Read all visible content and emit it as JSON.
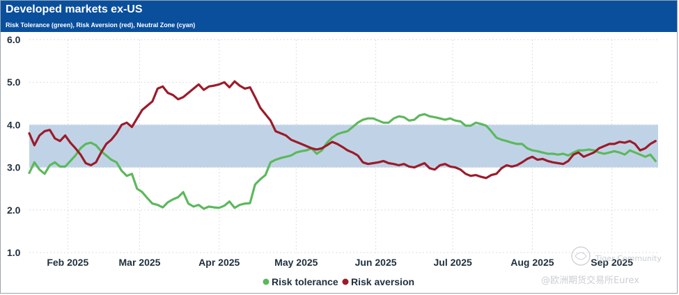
{
  "header": {
    "title": "Developed markets ex-US",
    "subtitle": "Risk Tolerance (green), Risk Aversion (red), Neutral Zone (cyan)"
  },
  "colors": {
    "header_bg": "#0a4f9c",
    "tolerance": "#5cb85c",
    "aversion": "#9b1b2a",
    "neutral": "#c0d3e6",
    "grid": "#d9dde2"
  },
  "watermark": {
    "line1": "Tiger Community",
    "line2": "@欧洲期货交易所Eurex"
  },
  "chart_data": {
    "type": "line",
    "title": "Developed markets ex-US",
    "subtitle": "Risk Tolerance (green), Risk Aversion (red), Neutral Zone (cyan)",
    "xlabel": "",
    "ylabel": "",
    "ylim": [
      1.0,
      6.0
    ],
    "yticks": [
      "6.0",
      "5.0",
      "4.0",
      "3.0",
      "2.0",
      "1.0"
    ],
    "x_range": [
      0,
      245
    ],
    "x_ticks": [
      {
        "label": "Feb 2025",
        "x": 15
      },
      {
        "label": "Mar 2025",
        "x": 43
      },
      {
        "label": "Apr 2025",
        "x": 74
      },
      {
        "label": "May 2025",
        "x": 104
      },
      {
        "label": "Jun 2025",
        "x": 135
      },
      {
        "label": "Jul 2025",
        "x": 165
      },
      {
        "label": "Aug 2025",
        "x": 196
      },
      {
        "label": "Sep 2025",
        "x": 227
      }
    ],
    "neutral_zone": [
      3.0,
      4.0
    ],
    "grid": true,
    "legend_position": "bottom-center",
    "series": [
      {
        "name": "Risk tolerance",
        "color": "#5cb85c",
        "x": [
          0,
          2,
          4,
          6,
          8,
          10,
          12,
          14,
          16,
          18,
          20,
          22,
          24,
          26,
          28,
          30,
          32,
          34,
          36,
          38,
          40,
          42,
          44,
          46,
          48,
          50,
          52,
          54,
          56,
          58,
          60,
          62,
          64,
          66,
          68,
          70,
          72,
          74,
          76,
          78,
          80,
          82,
          84,
          86,
          88,
          90,
          92,
          94,
          96,
          98,
          100,
          102,
          104,
          106,
          108,
          110,
          112,
          114,
          116,
          118,
          120,
          122,
          124,
          126,
          128,
          130,
          132,
          134,
          136,
          138,
          140,
          142,
          144,
          146,
          148,
          150,
          152,
          154,
          156,
          158,
          160,
          162,
          164,
          166,
          168,
          170,
          172,
          174,
          176,
          178,
          180,
          182,
          184,
          186,
          188,
          190,
          192,
          194,
          196,
          198,
          200,
          202,
          204,
          206,
          208,
          210,
          212,
          214,
          216,
          218,
          220,
          222,
          224,
          226,
          228,
          230,
          232,
          234,
          236,
          238,
          240,
          242,
          244
        ],
        "values": [
          2.87,
          3.12,
          2.95,
          2.85,
          3.05,
          3.12,
          3.02,
          3.02,
          3.15,
          3.28,
          3.45,
          3.55,
          3.58,
          3.52,
          3.38,
          3.28,
          3.18,
          3.12,
          2.92,
          2.8,
          2.85,
          2.5,
          2.42,
          2.28,
          2.15,
          2.12,
          2.06,
          2.18,
          2.25,
          2.3,
          2.42,
          2.15,
          2.08,
          2.12,
          2.03,
          2.08,
          2.06,
          2.05,
          2.1,
          2.2,
          2.05,
          2.12,
          2.15,
          2.16,
          2.6,
          2.72,
          2.82,
          3.12,
          3.18,
          3.22,
          3.25,
          3.28,
          3.35,
          3.38,
          3.4,
          3.45,
          3.32,
          3.4,
          3.58,
          3.7,
          3.78,
          3.82,
          3.85,
          3.95,
          4.05,
          4.12,
          4.15,
          4.15,
          4.1,
          4.05,
          4.05,
          4.15,
          4.2,
          4.18,
          4.1,
          4.12,
          4.22,
          4.25,
          4.2,
          4.18,
          4.15,
          4.12,
          4.15,
          4.1,
          4.08,
          3.98,
          3.98,
          4.05,
          4.02,
          3.98,
          3.85,
          3.7,
          3.65,
          3.62,
          3.58,
          3.55,
          3.55,
          3.45,
          3.4,
          3.38,
          3.35,
          3.32,
          3.32,
          3.3,
          3.32,
          3.28,
          3.35,
          3.4,
          3.4,
          3.42,
          3.4,
          3.35,
          3.32,
          3.35,
          3.38,
          3.35,
          3.3,
          3.4,
          3.35,
          3.3,
          3.25,
          3.3,
          3.15
        ]
      },
      {
        "name": "Risk aversion",
        "color": "#9b1b2a",
        "x": [
          0,
          2,
          4,
          6,
          8,
          10,
          12,
          14,
          16,
          18,
          20,
          22,
          24,
          26,
          28,
          30,
          32,
          34,
          36,
          38,
          40,
          42,
          44,
          46,
          48,
          50,
          52,
          54,
          56,
          58,
          60,
          62,
          64,
          66,
          68,
          70,
          72,
          74,
          76,
          78,
          80,
          82,
          84,
          86,
          88,
          90,
          92,
          94,
          96,
          98,
          100,
          102,
          104,
          106,
          108,
          110,
          112,
          114,
          116,
          118,
          120,
          122,
          124,
          126,
          128,
          130,
          132,
          134,
          136,
          138,
          140,
          142,
          144,
          146,
          148,
          150,
          152,
          154,
          156,
          158,
          160,
          162,
          164,
          166,
          168,
          170,
          172,
          174,
          176,
          178,
          180,
          182,
          184,
          186,
          188,
          190,
          192,
          194,
          196,
          198,
          200,
          202,
          204,
          206,
          208,
          210,
          212,
          214,
          216,
          218,
          220,
          222,
          224,
          226,
          228,
          230,
          232,
          234,
          236,
          238,
          240,
          242,
          244
        ],
        "values": [
          3.8,
          3.52,
          3.75,
          3.85,
          3.88,
          3.68,
          3.62,
          3.75,
          3.58,
          3.45,
          3.3,
          3.1,
          3.05,
          3.12,
          3.35,
          3.55,
          3.65,
          3.8,
          4.0,
          4.05,
          3.95,
          4.15,
          4.35,
          4.45,
          4.55,
          4.85,
          4.9,
          4.75,
          4.7,
          4.6,
          4.65,
          4.75,
          4.85,
          4.95,
          4.82,
          4.9,
          4.92,
          4.95,
          5.0,
          4.88,
          5.02,
          4.92,
          4.85,
          4.88,
          4.65,
          4.4,
          4.25,
          4.1,
          3.85,
          3.8,
          3.75,
          3.65,
          3.6,
          3.55,
          3.5,
          3.45,
          3.42,
          3.45,
          3.52,
          3.6,
          3.55,
          3.48,
          3.4,
          3.35,
          3.28,
          3.12,
          3.08,
          3.1,
          3.12,
          3.15,
          3.1,
          3.08,
          3.05,
          3.08,
          3.02,
          3.0,
          3.05,
          3.1,
          2.98,
          2.95,
          3.05,
          3.08,
          3.02,
          3.0,
          2.95,
          2.85,
          2.8,
          2.82,
          2.78,
          2.75,
          2.82,
          2.85,
          2.98,
          3.05,
          3.02,
          3.05,
          3.12,
          3.2,
          3.25,
          3.18,
          3.2,
          3.15,
          3.12,
          3.1,
          3.08,
          3.15,
          3.3,
          3.35,
          3.25,
          3.3,
          3.35,
          3.45,
          3.5,
          3.55,
          3.55,
          3.6,
          3.58,
          3.62,
          3.55,
          3.4,
          3.45,
          3.55,
          3.62
        ]
      }
    ]
  }
}
